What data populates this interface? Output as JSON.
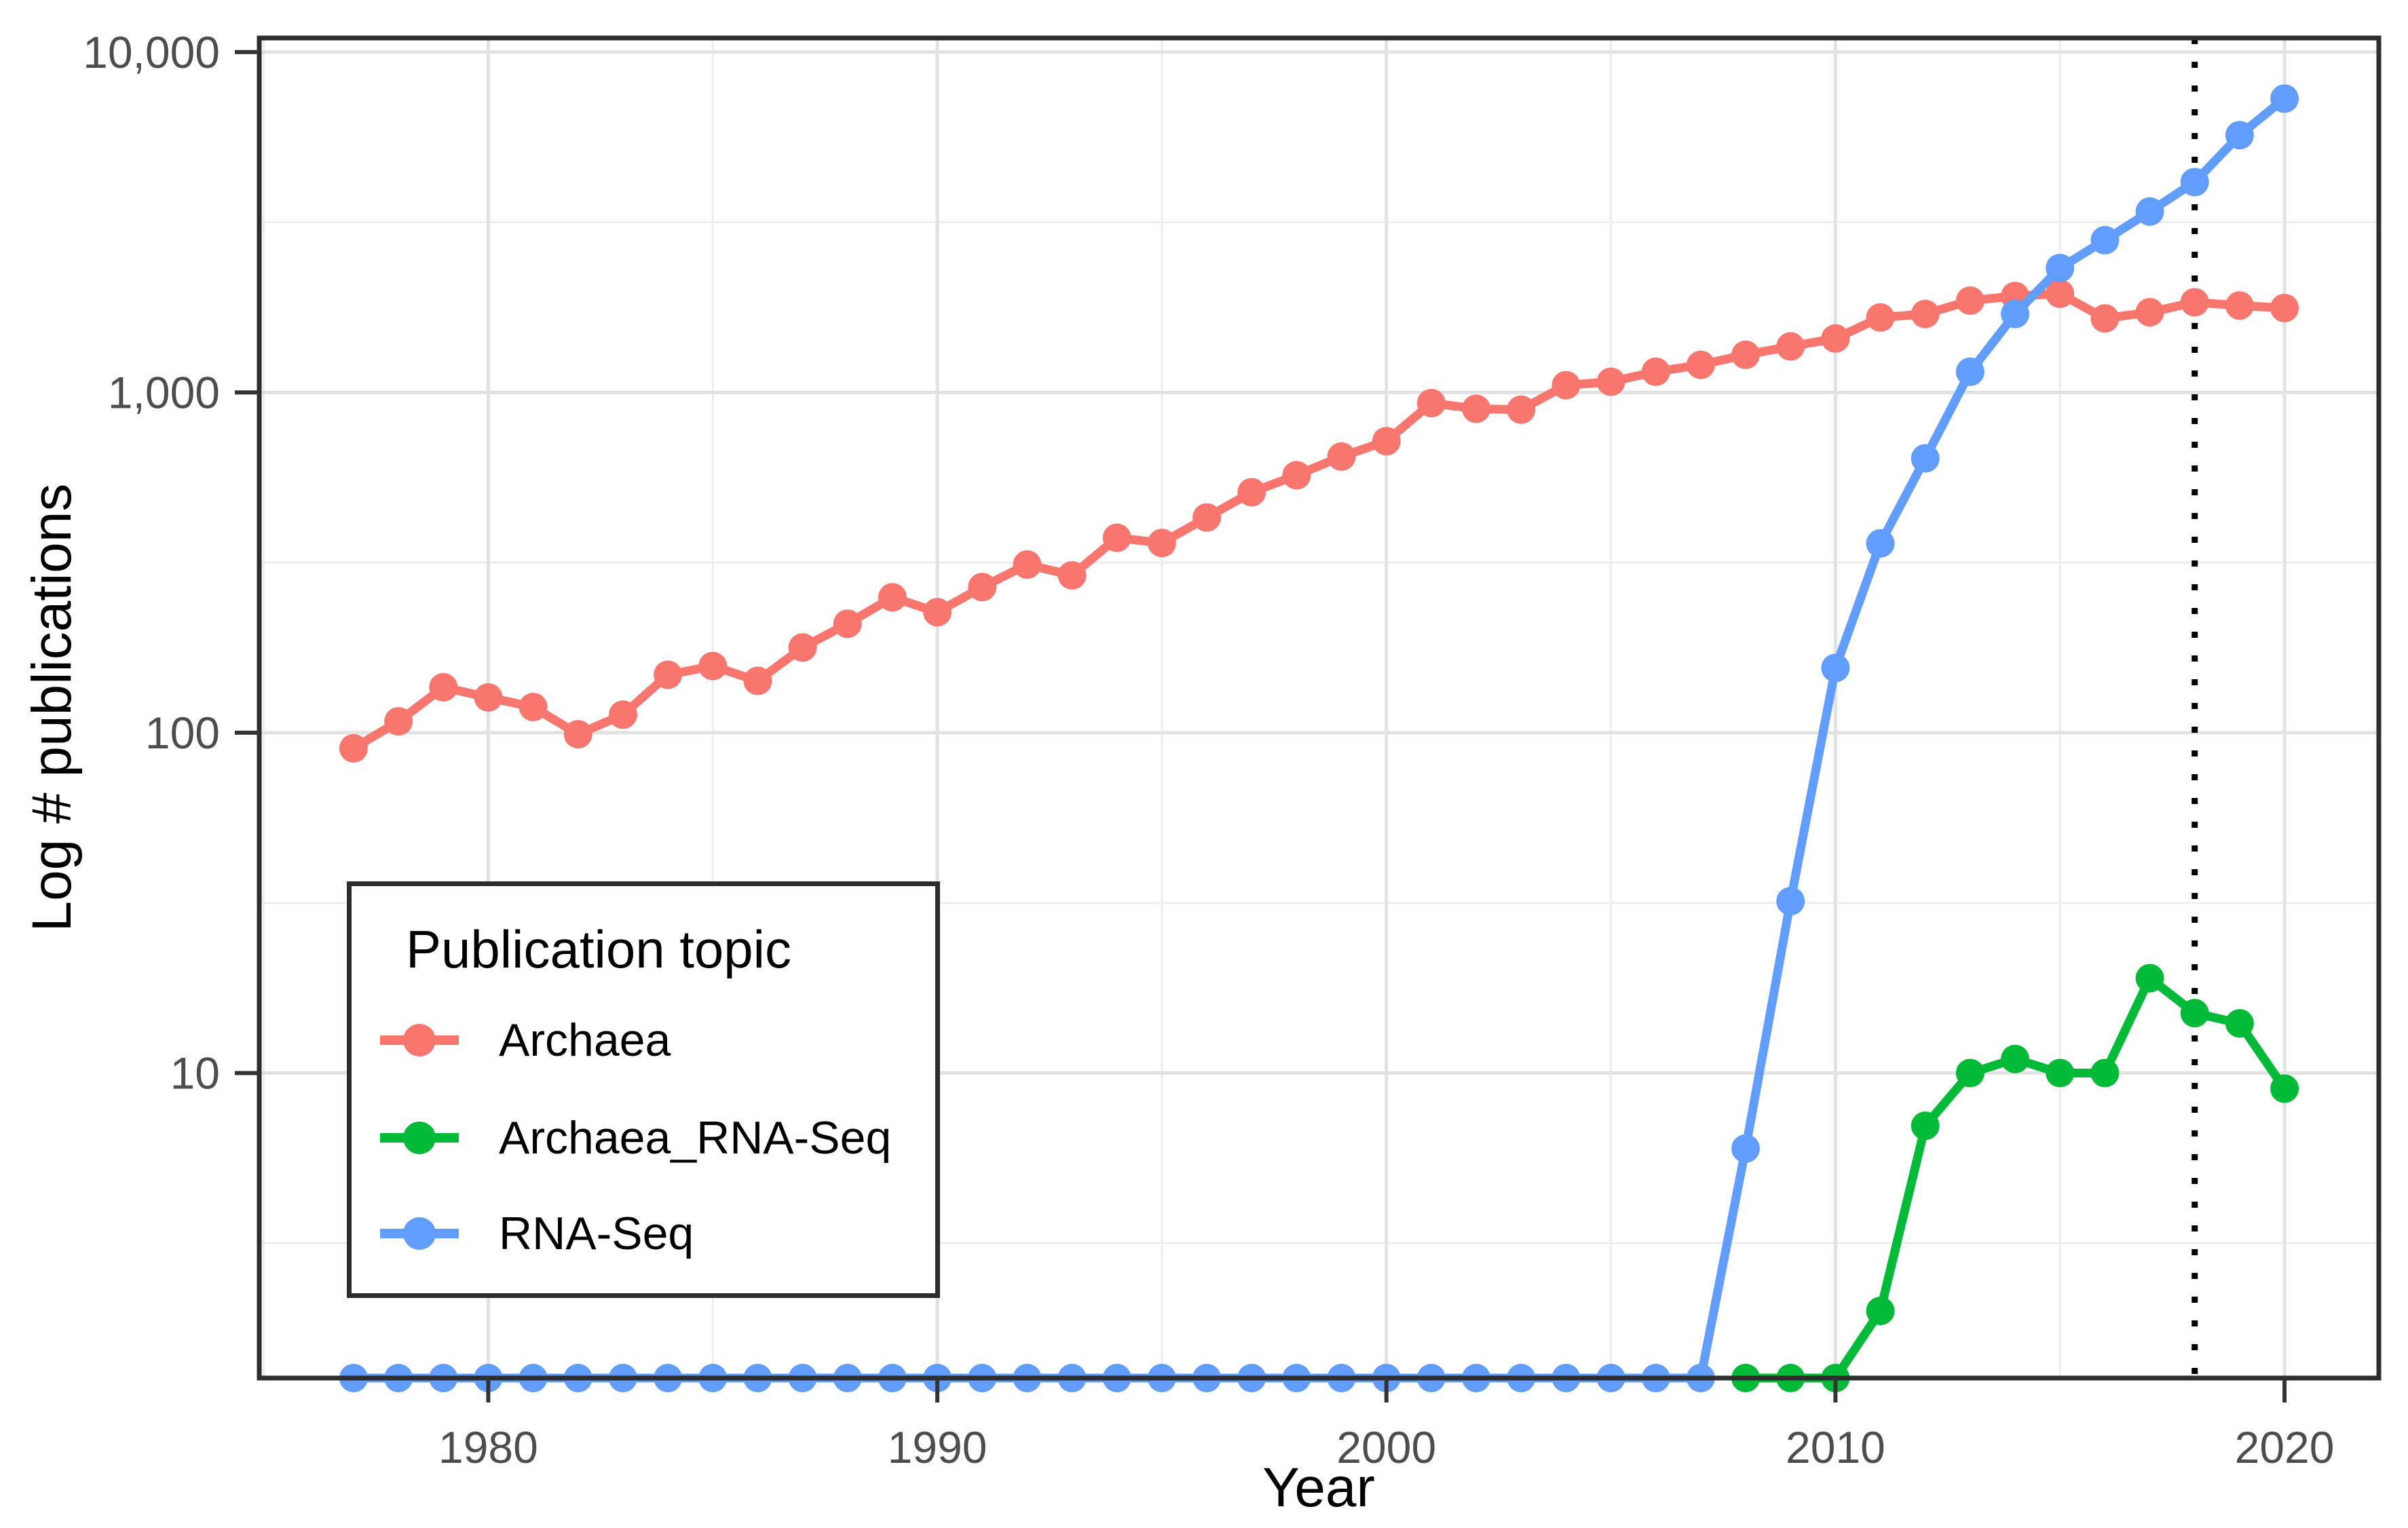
{
  "figure": {
    "x_axis_title": "Year",
    "y_axis_title": "Log # publications"
  },
  "legend": {
    "title": "Publication topic",
    "items": [
      {
        "label": "Archaea",
        "color": "#F8766D"
      },
      {
        "label": "Archaea_RNA-Seq",
        "color": "#00BA38"
      },
      {
        "label": "RNA-Seq",
        "color": "#619CFF"
      }
    ]
  },
  "chart_data": {
    "type": "line",
    "title": "",
    "xlabel": "Year",
    "ylabel": "Log # publications",
    "y_scale": "log10",
    "grid": "major+minor",
    "legend_position": "inside-bottom-left",
    "xlim": [
      1974.9,
      2022.1
    ],
    "ylim": [
      1.27,
      11000
    ],
    "x_ticks": [
      1980,
      1990,
      2000,
      2010,
      2020
    ],
    "x_minor_ticks": [
      1975,
      1985,
      1995,
      2005,
      2015
    ],
    "y_ticks": [
      10,
      100,
      1000,
      10000
    ],
    "y_tick_labels": [
      "10",
      "100",
      "1,000",
      "10,000"
    ],
    "y_minor_gridlines": [
      3.162,
      31.62,
      316.2,
      3162
    ],
    "vline": {
      "x": 2018,
      "linetype": "dotted",
      "color": "#000000"
    },
    "series": [
      {
        "name": "Archaea",
        "color": "#F8766D",
        "x": [
          1977,
          1978,
          1979,
          1980,
          1981,
          1982,
          1983,
          1984,
          1985,
          1986,
          1987,
          1988,
          1989,
          1990,
          1991,
          1992,
          1993,
          1994,
          1995,
          1996,
          1997,
          1998,
          1999,
          2000,
          2001,
          2002,
          2003,
          2004,
          2005,
          2006,
          2007,
          2008,
          2009,
          2010,
          2011,
          2012,
          2013,
          2014,
          2015,
          2016,
          2017,
          2018,
          2019,
          2020
        ],
        "values": [
          90,
          108,
          136,
          127,
          119,
          99,
          113,
          148,
          157,
          142,
          178,
          209,
          250,
          226,
          268,
          312,
          290,
          374,
          361,
          429,
          509,
          571,
          648,
          719,
          930,
          895,
          890,
          1050,
          1075,
          1150,
          1205,
          1290,
          1365,
          1440,
          1660,
          1700,
          1860,
          1920,
          1950,
          1650,
          1720,
          1840,
          1800,
          1770
        ]
      },
      {
        "name": "Archaea_RNA-Seq",
        "color": "#00BA38",
        "x": [
          2008,
          2009,
          2010,
          2011,
          2012,
          2013,
          2014,
          2015,
          2016,
          2017,
          2018,
          2019,
          2020
        ],
        "values": [
          1,
          1,
          1,
          2,
          7,
          10,
          11,
          10,
          10,
          19,
          15,
          14,
          9
        ]
      },
      {
        "name": "RNA-Seq",
        "color": "#619CFF",
        "x": [
          1977,
          1978,
          1979,
          1980,
          1981,
          1982,
          1983,
          1984,
          1985,
          1986,
          1987,
          1988,
          1989,
          1990,
          1991,
          1992,
          1993,
          1994,
          1995,
          1996,
          1997,
          1998,
          1999,
          2000,
          2001,
          2002,
          2003,
          2004,
          2005,
          2006,
          2007,
          2008,
          2009,
          2010,
          2011,
          2012,
          2013,
          2014,
          2015,
          2016,
          2017,
          2018,
          2019,
          2020
        ],
        "values": [
          1,
          1,
          1,
          1,
          1,
          1,
          1,
          1,
          1,
          1,
          1,
          1,
          1,
          1,
          1,
          1,
          1,
          1,
          1,
          1,
          1,
          1,
          1,
          1,
          1,
          1,
          1,
          1,
          1,
          1,
          1,
          6,
          32,
          155,
          360,
          640,
          1150,
          1700,
          2320,
          2800,
          3400,
          4150,
          5700,
          7300
        ]
      }
    ]
  }
}
